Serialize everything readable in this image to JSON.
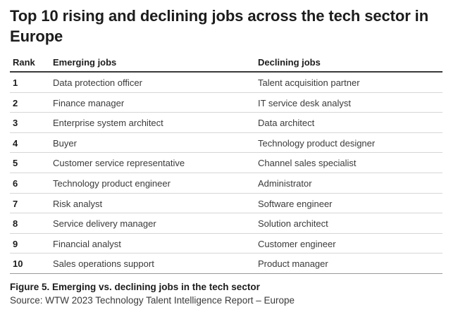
{
  "title": "Top 10 rising and declining jobs across the tech sector in Europe",
  "table": {
    "headers": {
      "rank": "Rank",
      "emerging": "Emerging jobs",
      "declining": "Declining jobs"
    },
    "rows": [
      {
        "rank": "1",
        "emerging": "Data protection officer",
        "declining": "Talent acquisition partner"
      },
      {
        "rank": "2",
        "emerging": "Finance manager",
        "declining": "IT service desk analyst"
      },
      {
        "rank": "3",
        "emerging": "Enterprise system architect",
        "declining": "Data architect"
      },
      {
        "rank": "4",
        "emerging": "Buyer",
        "declining": "Technology product designer"
      },
      {
        "rank": "5",
        "emerging": "Customer service representative",
        "declining": "Channel sales specialist"
      },
      {
        "rank": "6",
        "emerging": "Technology product engineer",
        "declining": "Administrator"
      },
      {
        "rank": "7",
        "emerging": "Risk analyst",
        "declining": "Software engineer"
      },
      {
        "rank": "8",
        "emerging": "Service delivery manager",
        "declining": "Solution architect"
      },
      {
        "rank": "9",
        "emerging": "Financial analyst",
        "declining": "Customer engineer"
      },
      {
        "rank": "10",
        "emerging": "Sales operations support",
        "declining": "Product manager"
      }
    ]
  },
  "caption": "Figure 5. Emerging vs. declining jobs in the tech sector",
  "source": "Source: WTW 2023 Technology Talent Intelligence Report – Europe"
}
